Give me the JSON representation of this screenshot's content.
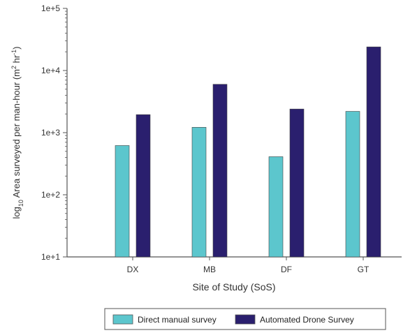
{
  "colors": {
    "series_manual": "#5cc6cd",
    "series_drone": "#2a1f6e",
    "axis": "#555555",
    "text": "#333333",
    "background": "#ffffff"
  },
  "chart_data": {
    "type": "bar",
    "title": "",
    "xlabel": "Site of Study (SoS)",
    "ylabel": "log10 Area surveyed per man-hour (m2 hr-1)",
    "ylabel_parts": {
      "prefix": "log",
      "prefix_sub": "10",
      "main": " Area surveyed per man-hour (m",
      "sup1": "2",
      "middle": " hr",
      "sup2": "-1",
      "suffix": ")"
    },
    "yscale": "log",
    "ylim": [
      10,
      100000
    ],
    "yticks": [
      10,
      100,
      1000,
      10000,
      100000
    ],
    "ytick_labels": [
      "1e+1",
      "1e+2",
      "1e+3",
      "1e+4",
      "1e+5"
    ],
    "categories": [
      "DX",
      "MB",
      "DF",
      "GT"
    ],
    "series": [
      {
        "name": "Direct manual survey",
        "values": [
          620,
          1220,
          410,
          2200
        ]
      },
      {
        "name": "Automated Drone Survey",
        "values": [
          1950,
          6000,
          2400,
          24000
        ]
      }
    ],
    "grid": false,
    "legend_position": "bottom"
  }
}
